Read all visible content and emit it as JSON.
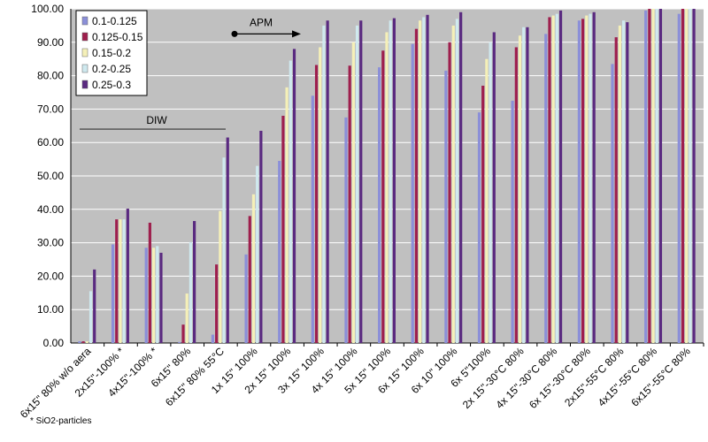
{
  "chart_data": {
    "type": "bar",
    "categories": [
      "6x15\" 80% w/o aera",
      "2x15\"-100% *",
      "4x15\"-100% *",
      "6x15\" 80%",
      "6x15\" 80% 55°C",
      "1x 15\" 100%",
      "2x 15\" 100%",
      "3x 15\" 100%",
      "4x 15\" 100%",
      "5x 15\" 100%",
      "6x 15\" 100%",
      "6x 10\" 100%",
      "6x 5\"100%",
      "2x 15\"-30°C 80%",
      "4x 15\"-30°C 80%",
      "6x 15\"-30°C 80%",
      "2x15\"-55°C 80%",
      "4x15\"-55°C 80%",
      "6x15\"-55°C 80%"
    ],
    "series": [
      {
        "name": "0.1-0.125",
        "color": "#8b8fd8",
        "values": [
          0.5,
          29.5,
          28.5,
          0.3,
          2.5,
          26.5,
          54.5,
          74,
          67.5,
          82.5,
          89.5,
          81.5,
          69,
          72.5,
          92.5,
          96.5,
          83.5,
          99.5,
          98.5
        ]
      },
      {
        "name": "0.125-0.15",
        "color": "#9e1f4d",
        "values": [
          0.5,
          37,
          36,
          5.5,
          23.5,
          38,
          68,
          83.2,
          83,
          87.5,
          94,
          90,
          77,
          88.5,
          97.5,
          97,
          91.5,
          100,
          100
        ]
      },
      {
        "name": "0.15-0.2",
        "color": "#f5f0b8",
        "values": [
          0.5,
          37,
          28.5,
          14.8,
          39.5,
          44.5,
          76.5,
          88.5,
          90,
          93,
          96.5,
          95,
          85,
          92,
          98,
          98,
          95,
          100,
          100
        ]
      },
      {
        "name": "0.2-0.25",
        "color": "#cfe9ef",
        "values": [
          15.5,
          37,
          29,
          30.2,
          55.5,
          53,
          84.5,
          95,
          95,
          96.5,
          97.5,
          97,
          90,
          94.5,
          98.5,
          98.5,
          96.5,
          100,
          100
        ]
      },
      {
        "name": "0.25-0.3",
        "color": "#5a2a80",
        "values": [
          22,
          40.2,
          27,
          36.5,
          61.5,
          63.5,
          88,
          96.5,
          96.5,
          97.2,
          98.2,
          99,
          93,
          94.5,
          99.5,
          99,
          96,
          100,
          100
        ]
      }
    ],
    "ylim": [
      0,
      100
    ],
    "yticks": [
      "0.00",
      "10.00",
      "20.00",
      "30.00",
      "40.00",
      "50.00",
      "60.00",
      "70.00",
      "80.00",
      "90.00",
      "100.00"
    ],
    "plot_background": "#c0c0c0",
    "gridlines": true,
    "legend_position": "top-left",
    "annotations": {
      "diw": "DIW",
      "apm": "APM",
      "footnote": "* SiO2-particles"
    }
  }
}
